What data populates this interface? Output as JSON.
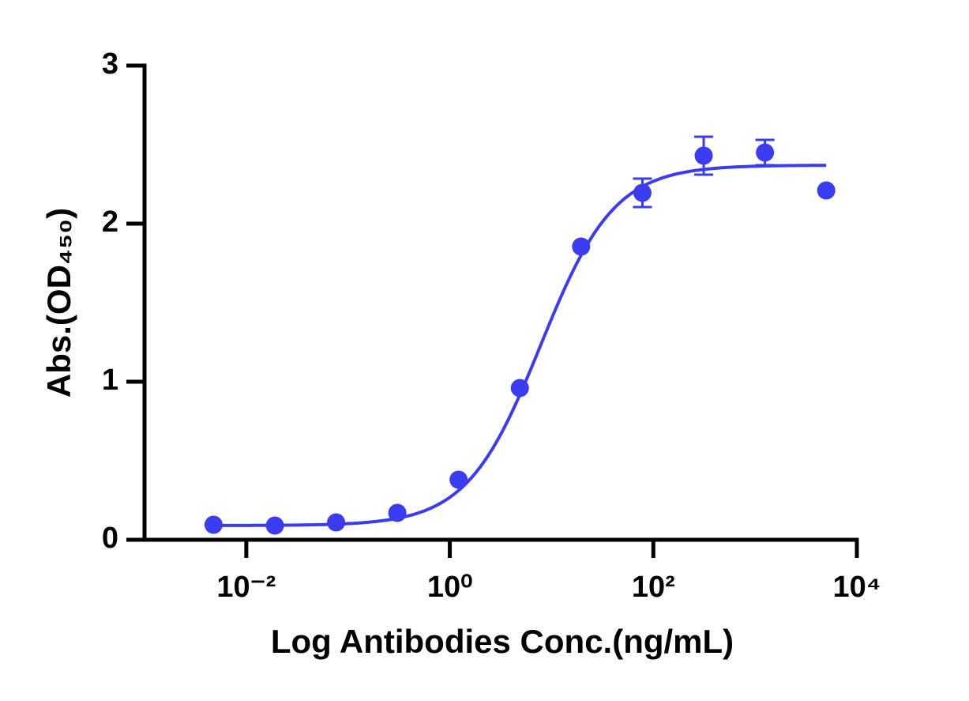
{
  "chart_data": {
    "type": "scatter",
    "xlabel": "Log Antibodies Conc.(ng/mL)",
    "ylabel": "Abs.(OD₄₅₀)",
    "x_scale": "log",
    "xlim": [
      0.001,
      10000
    ],
    "xticks": [
      {
        "value": 0.01,
        "label": "10⁻²"
      },
      {
        "value": 1,
        "label": "10⁰"
      },
      {
        "value": 100,
        "label": "10²"
      },
      {
        "value": 10000,
        "label": "10⁴"
      }
    ],
    "ylim": [
      0,
      3
    ],
    "yticks": [
      0,
      1,
      2,
      3
    ],
    "series": [
      {
        "color": "#3b3bef",
        "x": [
          0.00477,
          0.0191,
          0.0763,
          0.305,
          1.22,
          4.88,
          19.5,
          78.1,
          312.5,
          1250,
          5000
        ],
        "values": [
          0.095,
          0.09,
          0.11,
          0.17,
          0.38,
          0.96,
          1.855,
          2.195,
          2.43,
          2.45,
          2.21
        ],
        "errors": [
          null,
          null,
          null,
          null,
          null,
          null,
          null,
          0.09,
          0.12,
          0.08,
          null
        ]
      }
    ],
    "fit": {
      "bottom": 0.09,
      "top": 2.37,
      "ec50": 7.8,
      "hill": 1.2
    }
  }
}
